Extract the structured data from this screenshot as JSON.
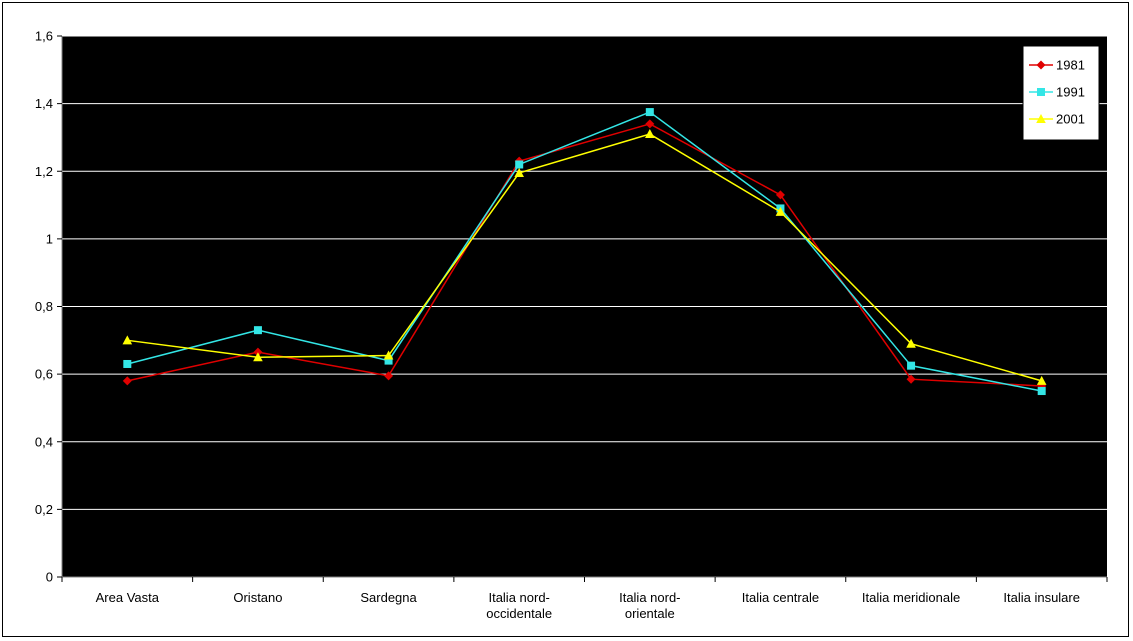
{
  "chart_data": {
    "type": "line",
    "categories": [
      [
        "Area Vasta"
      ],
      [
        "Oristano"
      ],
      [
        "Sardegna"
      ],
      [
        "Italia nord-",
        "occidentale"
      ],
      [
        "Italia nord-",
        "orientale"
      ],
      [
        "Italia centrale"
      ],
      [
        "Italia meridionale"
      ],
      [
        "Italia insulare"
      ]
    ],
    "series": [
      {
        "name": "1981",
        "color": "#e00000",
        "marker": "diamond",
        "values": [
          0.58,
          0.665,
          0.595,
          1.23,
          1.34,
          1.13,
          0.585,
          0.565
        ]
      },
      {
        "name": "1991",
        "color": "#33e6e6",
        "marker": "square",
        "values": [
          0.63,
          0.73,
          0.64,
          1.22,
          1.375,
          1.09,
          0.625,
          0.55
        ]
      },
      {
        "name": "2001",
        "color": "#ffff00",
        "marker": "triangle",
        "values": [
          0.7,
          0.65,
          0.655,
          1.195,
          1.31,
          1.08,
          0.69,
          0.58
        ]
      }
    ],
    "yticks": [
      "0",
      "0,2",
      "0,4",
      "0,6",
      "0,8",
      "1",
      "1,2",
      "1,4",
      "1,6"
    ],
    "ylim": [
      0,
      1.6
    ],
    "ystep": 0.2,
    "grid": true,
    "legend": "top-right",
    "plot_background": "#000000",
    "grid_color": "#ffffff"
  }
}
